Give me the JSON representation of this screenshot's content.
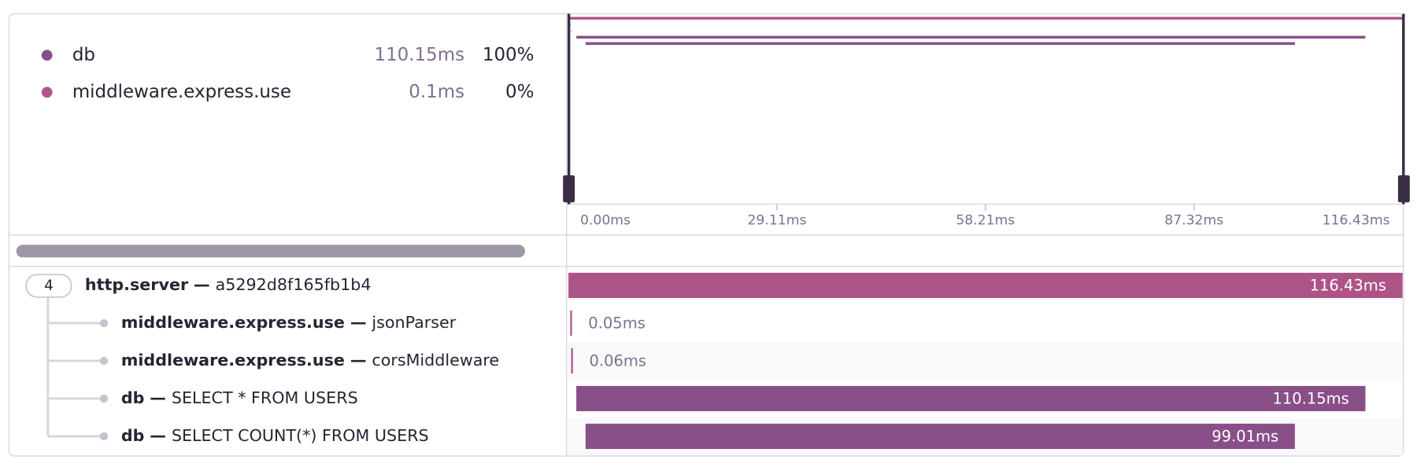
{
  "legend": [
    {
      "name": "db",
      "color": "#884f88",
      "duration": "110.15ms",
      "percent": "100%"
    },
    {
      "name": "middleware.express.use",
      "color": "#b0578a",
      "duration": "0.1ms",
      "percent": "0%"
    }
  ],
  "axis": {
    "xlim": [
      0,
      116.43
    ],
    "ticks": [
      {
        "value": 0,
        "label": "0.00ms"
      },
      {
        "value": 29.11,
        "label": "29.11ms"
      },
      {
        "value": 58.21,
        "label": "58.21ms"
      },
      {
        "value": 87.32,
        "label": "87.32ms"
      },
      {
        "value": 116.43,
        "label": "116.43ms"
      }
    ]
  },
  "separator": "—",
  "root_children": "4",
  "spans": [
    {
      "op": "http.server",
      "description": "a5292d8f165fb1b4",
      "start": 0,
      "duration": 116.43,
      "duration_label": "116.43ms",
      "color": "#ad5487"
    },
    {
      "op": "middleware.express.use",
      "description": "jsonParser",
      "start": 0.25,
      "duration": 0.05,
      "duration_label": "0.05ms",
      "color": "#b0578a"
    },
    {
      "op": "middleware.express.use",
      "description": "corsMiddleware",
      "start": 0.38,
      "duration": 0.06,
      "duration_label": "0.06ms",
      "color": "#b0578a"
    },
    {
      "op": "db",
      "description": "SELECT * FROM USERS",
      "start": 1.1,
      "duration": 110.15,
      "duration_label": "110.15ms",
      "color": "#884f88"
    },
    {
      "op": "db",
      "description": "SELECT COUNT(*) FROM USERS",
      "start": 2.39,
      "duration": 99.01,
      "duration_label": "99.01ms",
      "color": "#884f88"
    }
  ]
}
